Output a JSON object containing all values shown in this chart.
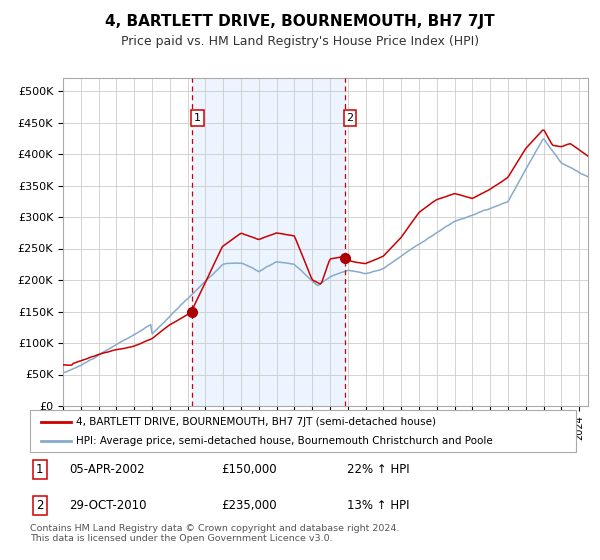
{
  "title": "4, BARTLETT DRIVE, BOURNEMOUTH, BH7 7JT",
  "subtitle": "Price paid vs. HM Land Registry's House Price Index (HPI)",
  "title_fontsize": 11,
  "subtitle_fontsize": 9,
  "ylim": [
    0,
    520000
  ],
  "yticks": [
    0,
    50000,
    100000,
    150000,
    200000,
    250000,
    300000,
    350000,
    400000,
    450000,
    500000
  ],
  "ytick_labels": [
    "£0",
    "£50K",
    "£100K",
    "£150K",
    "£200K",
    "£250K",
    "£300K",
    "£350K",
    "£400K",
    "£450K",
    "£500K"
  ],
  "sale1_date_num": 2002.27,
  "sale1_price": 150000,
  "sale2_date_num": 2010.83,
  "sale2_price": 235000,
  "sale1_label": "1",
  "sale2_label": "2",
  "vline_color": "#cc0000",
  "fill_color": "#ddeeff",
  "fill_alpha": 0.55,
  "red_line_color": "#cc0000",
  "blue_line_color": "#88aacc",
  "dot_color": "#aa0000",
  "dot_size": 7,
  "grid_color": "#cccccc",
  "bg_color": "#ffffff",
  "legend_red_label": "4, BARTLETT DRIVE, BOURNEMOUTH, BH7 7JT (semi-detached house)",
  "legend_blue_label": "HPI: Average price, semi-detached house, Bournemouth Christchurch and Poole",
  "table_row1": [
    "1",
    "05-APR-2002",
    "£150,000",
    "22% ↑ HPI"
  ],
  "table_row2": [
    "2",
    "29-OCT-2010",
    "£235,000",
    "13% ↑ HPI"
  ],
  "footer": "Contains HM Land Registry data © Crown copyright and database right 2024.\nThis data is licensed under the Open Government Licence v3.0."
}
